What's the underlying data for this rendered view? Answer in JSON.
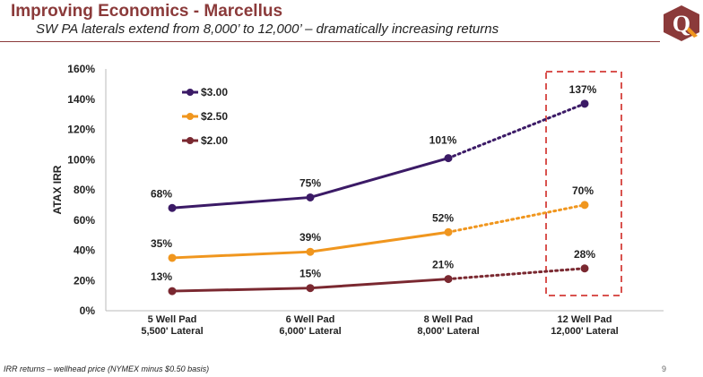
{
  "header": {
    "title": "Improving Economics - Marcellus",
    "subtitle": "SW PA laterals extend from 8,000’ to 12,000’ – dramatically increasing returns",
    "logo_letter": "Q"
  },
  "footer": {
    "note": "IRR returns – wellhead price (NYMEX minus $0.50 basis)",
    "page_number": "9"
  },
  "colors": {
    "brand": "#8B3A3A",
    "highlight_box": "#D9534F"
  },
  "chart_data": {
    "type": "line",
    "ylabel": "ATAX IRR",
    "ylim": [
      0,
      160
    ],
    "yticks": [
      "0%",
      "20%",
      "40%",
      "60%",
      "80%",
      "100%",
      "120%",
      "140%",
      "160%"
    ],
    "grid": false,
    "legend": "top-left",
    "categories": [
      [
        "5 Well Pad",
        "5,500' Lateral"
      ],
      [
        "6 Well Pad",
        "6,000' Lateral"
      ],
      [
        "8 Well Pad",
        "8,000' Lateral"
      ],
      [
        "12 Well Pad",
        "12,000' Lateral"
      ]
    ],
    "highlighted_category": "12 Well Pad",
    "series": [
      {
        "name": "$3.00",
        "color": "#3B1A66",
        "values": [
          68,
          75,
          101,
          137
        ],
        "labels": [
          "68%",
          "75%",
          "101%",
          "137%"
        ]
      },
      {
        "name": "$2.50",
        "color": "#F0961E",
        "values": [
          35,
          39,
          52,
          70
        ],
        "labels": [
          "35%",
          "39%",
          "52%",
          "70%"
        ]
      },
      {
        "name": "$2.00",
        "color": "#7A2830",
        "values": [
          13,
          15,
          21,
          28
        ],
        "labels": [
          "13%",
          "15%",
          "21%",
          "28%"
        ]
      }
    ]
  }
}
